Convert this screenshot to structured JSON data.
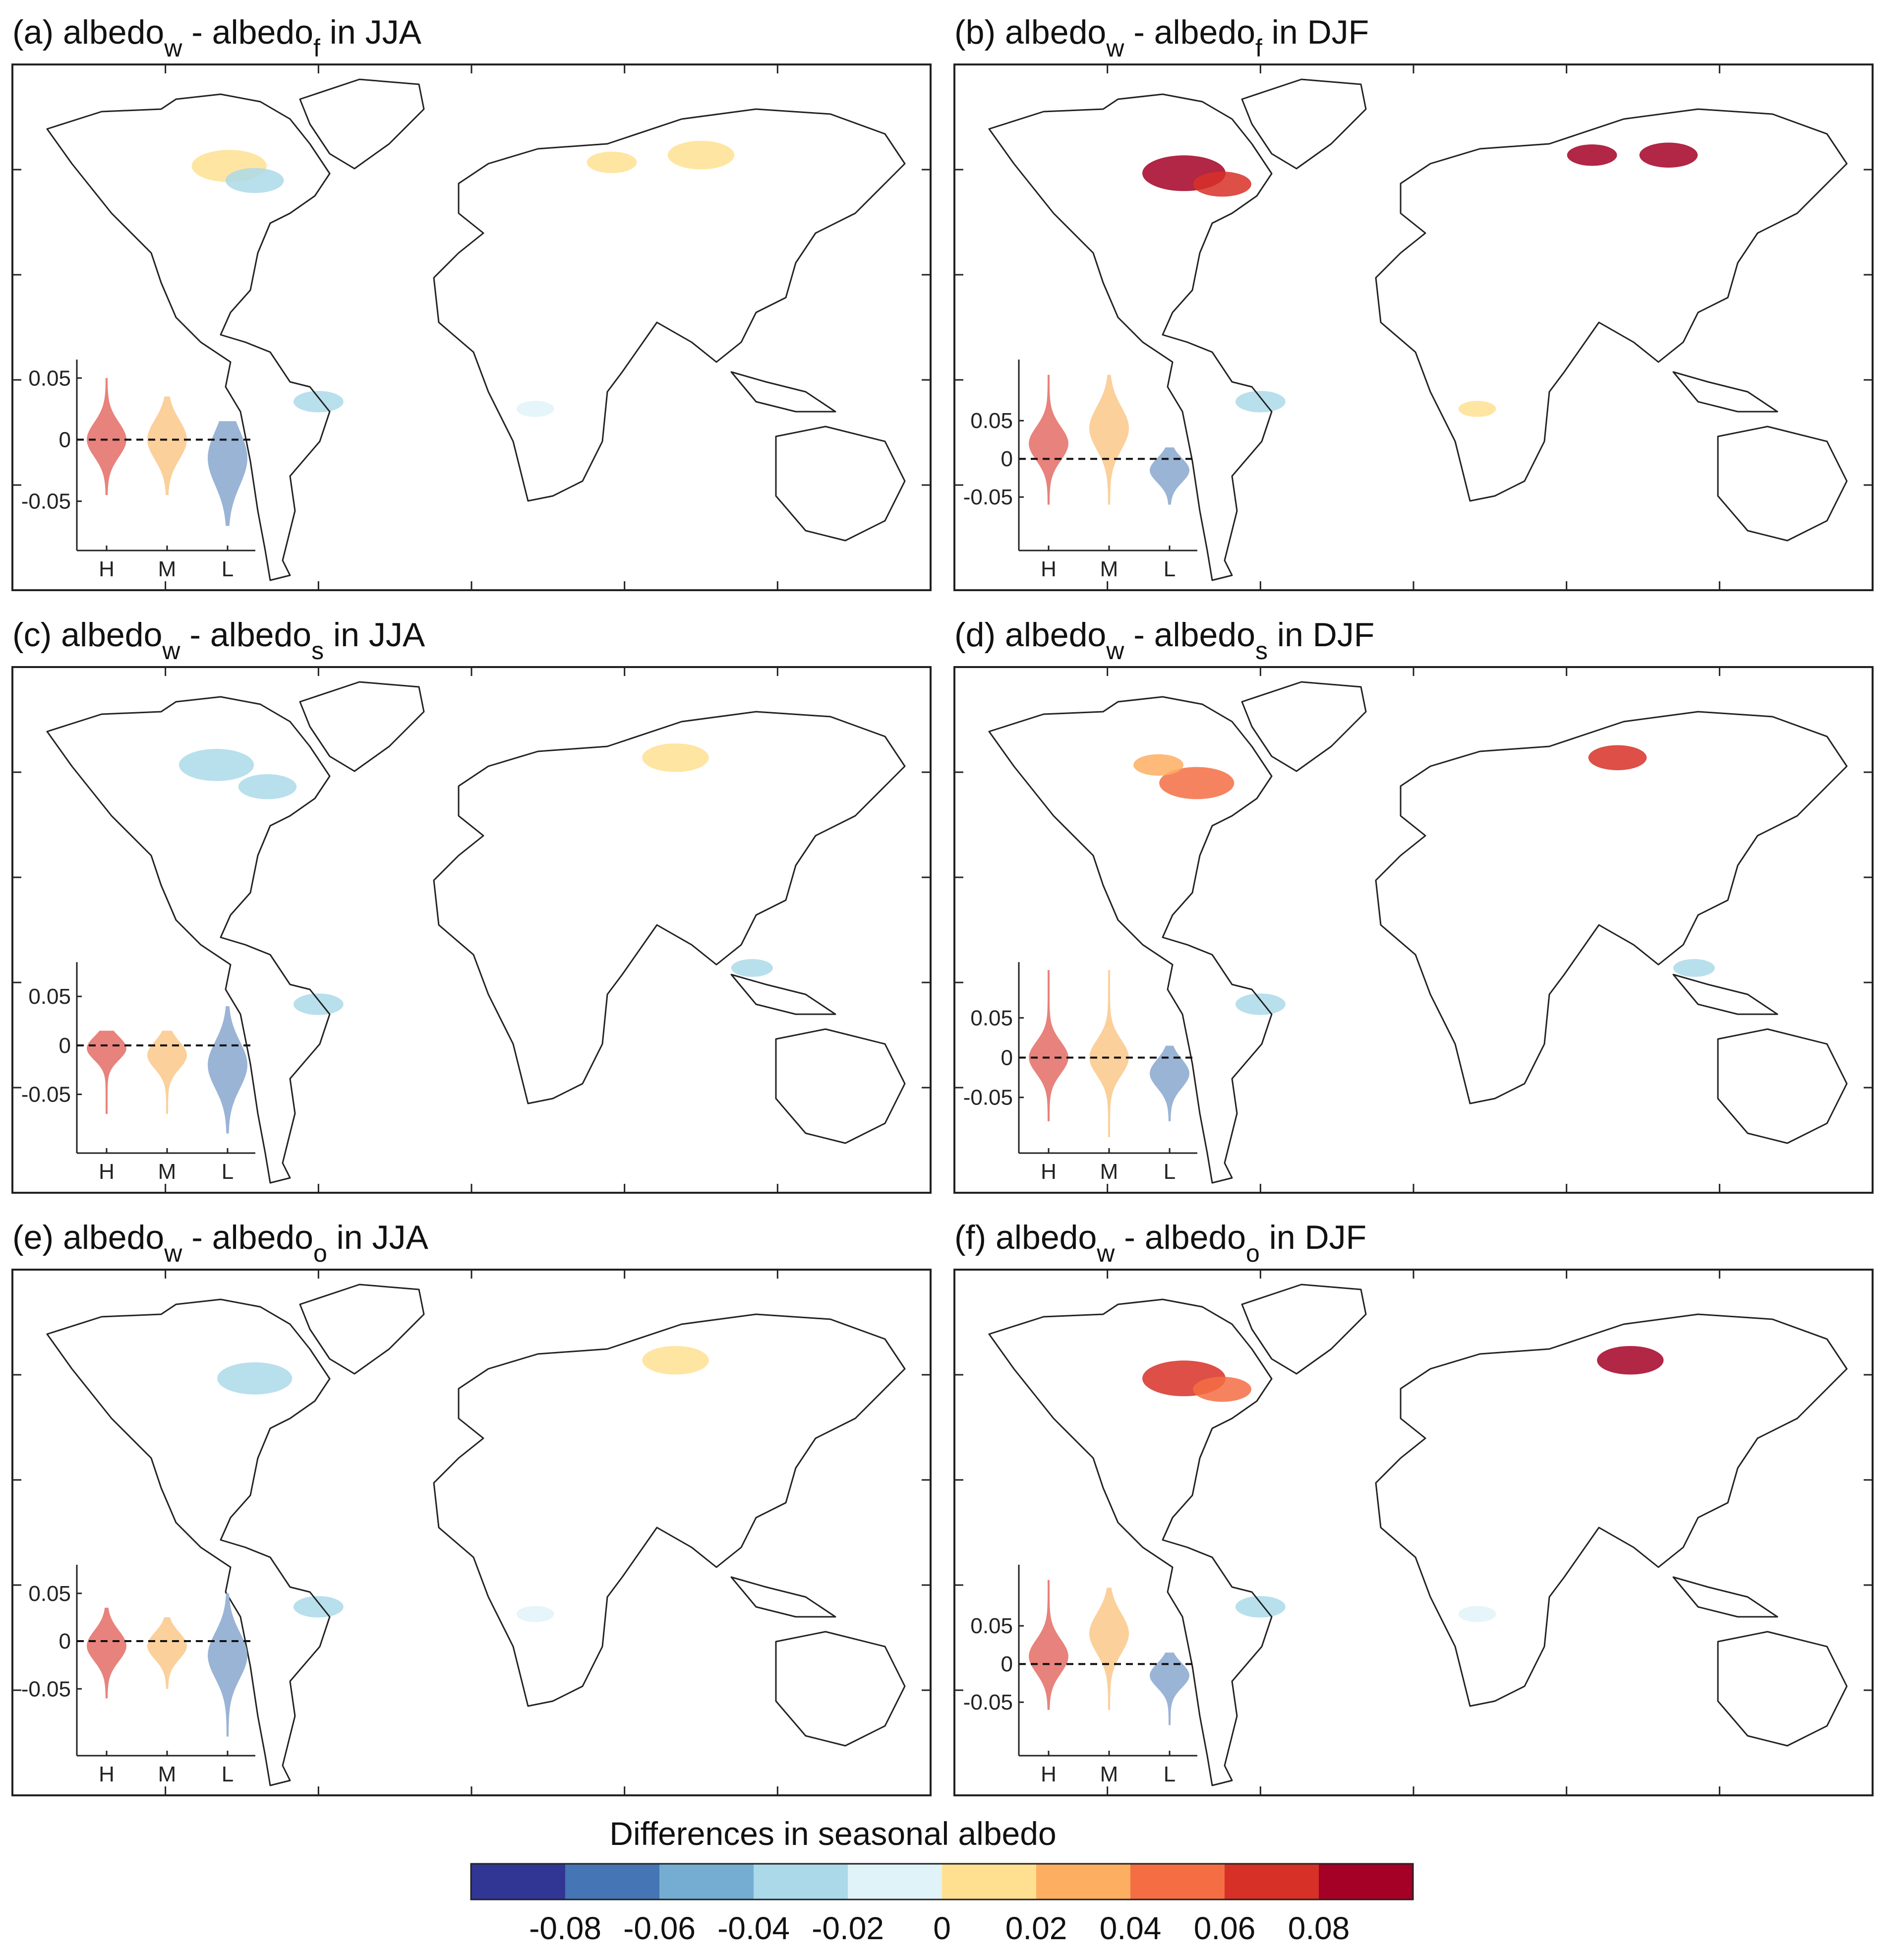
{
  "chart_data": [
    {
      "id": "a",
      "type": "violin+map",
      "title": {
        "prefix": "(a) albedo",
        "sub1": "w",
        "mid": " - albedo",
        "sub2": "f",
        "suffix": " in JJA"
      },
      "yticks": [
        0.05,
        0,
        -0.05
      ],
      "ylim": [
        -0.09,
        0.065
      ],
      "categories": [
        "H",
        "M",
        "L"
      ],
      "violins": [
        {
          "category": "H",
          "color": "#e8827c",
          "min": -0.045,
          "max": 0.05,
          "median": 0.0,
          "spread": 0.014
        },
        {
          "category": "M",
          "color": "#fbd09a",
          "min": -0.045,
          "max": 0.035,
          "median": 0.0,
          "spread": 0.016
        },
        {
          "category": "L",
          "color": "#9ab4d6",
          "min": -0.07,
          "max": 0.015,
          "median": -0.015,
          "spread": 0.022
        }
      ],
      "blobs": [
        {
          "lon": -95,
          "lat": 57,
          "r": 18,
          "color": "#fee090"
        },
        {
          "lon": -85,
          "lat": 53,
          "r": 14,
          "color": "#abd9e9"
        },
        {
          "lon": 55,
          "lat": 58,
          "r": 12,
          "color": "#fee090"
        },
        {
          "lon": 90,
          "lat": 60,
          "r": 16,
          "color": "#fee090"
        },
        {
          "lon": -60,
          "lat": -8,
          "r": 12,
          "color": "#abd9e9"
        },
        {
          "lon": 25,
          "lat": -10,
          "r": 9,
          "color": "#e0f3f8"
        }
      ]
    },
    {
      "id": "b",
      "type": "violin+map",
      "title": {
        "prefix": "(b) albedo",
        "sub1": "w",
        "mid": " - albedo",
        "sub2": "f",
        "suffix": " in DJF"
      },
      "yticks": [
        0.05,
        0,
        -0.05
      ],
      "ylim": [
        -0.12,
        0.13
      ],
      "categories": [
        "H",
        "M",
        "L"
      ],
      "violins": [
        {
          "category": "H",
          "color": "#e8827c",
          "min": -0.06,
          "max": 0.11,
          "median": 0.02,
          "spread": 0.022
        },
        {
          "category": "M",
          "color": "#fbd09a",
          "min": -0.06,
          "max": 0.11,
          "median": 0.04,
          "spread": 0.028
        },
        {
          "category": "L",
          "color": "#9ab4d6",
          "min": -0.06,
          "max": 0.015,
          "median": -0.015,
          "spread": 0.016
        }
      ],
      "blobs": [
        {
          "lon": -90,
          "lat": 55,
          "r": 20,
          "color": "#a50026"
        },
        {
          "lon": -75,
          "lat": 52,
          "r": 14,
          "color": "#d73027"
        },
        {
          "lon": 70,
          "lat": 60,
          "r": 12,
          "color": "#a50026"
        },
        {
          "lon": 100,
          "lat": 60,
          "r": 14,
          "color": "#a50026"
        },
        {
          "lon": -60,
          "lat": -8,
          "r": 12,
          "color": "#abd9e9"
        },
        {
          "lon": 25,
          "lat": -10,
          "r": 9,
          "color": "#fee090"
        }
      ]
    },
    {
      "id": "c",
      "type": "violin+map",
      "title": {
        "prefix": "(c) albedo",
        "sub1": "w",
        "mid": " - albedo",
        "sub2": "s",
        "suffix": " in JJA"
      },
      "yticks": [
        0.05,
        0,
        -0.05
      ],
      "ylim": [
        -0.11,
        0.085
      ],
      "categories": [
        "H",
        "M",
        "L"
      ],
      "violins": [
        {
          "category": "H",
          "color": "#e8827c",
          "min": -0.07,
          "max": 0.015,
          "median": -0.003,
          "spread": 0.012
        },
        {
          "category": "M",
          "color": "#fbd09a",
          "min": -0.07,
          "max": 0.015,
          "median": -0.01,
          "spread": 0.014
        },
        {
          "category": "L",
          "color": "#9ab4d6",
          "min": -0.09,
          "max": 0.04,
          "median": -0.02,
          "spread": 0.024
        }
      ],
      "blobs": [
        {
          "lon": -100,
          "lat": 58,
          "r": 18,
          "color": "#abd9e9"
        },
        {
          "lon": -80,
          "lat": 52,
          "r": 14,
          "color": "#abd9e9"
        },
        {
          "lon": 80,
          "lat": 60,
          "r": 16,
          "color": "#fee090"
        },
        {
          "lon": -60,
          "lat": -8,
          "r": 12,
          "color": "#abd9e9"
        },
        {
          "lon": 110,
          "lat": 2,
          "r": 10,
          "color": "#abd9e9"
        }
      ]
    },
    {
      "id": "d",
      "type": "violin+map",
      "title": {
        "prefix": "(d) albedo",
        "sub1": "w",
        "mid": " - albedo",
        "sub2": "s",
        "suffix": " in DJF"
      },
      "yticks": [
        0.05,
        0,
        -0.05
      ],
      "ylim": [
        -0.12,
        0.12
      ],
      "categories": [
        "H",
        "M",
        "L"
      ],
      "violins": [
        {
          "category": "H",
          "color": "#e8827c",
          "min": -0.08,
          "max": 0.11,
          "median": 0.0,
          "spread": 0.02
        },
        {
          "category": "M",
          "color": "#fbd09a",
          "min": -0.1,
          "max": 0.11,
          "median": 0.0,
          "spread": 0.022
        },
        {
          "category": "L",
          "color": "#9ab4d6",
          "min": -0.08,
          "max": 0.015,
          "median": -0.02,
          "spread": 0.018
        }
      ],
      "blobs": [
        {
          "lon": -85,
          "lat": 53,
          "r": 18,
          "color": "#f46d43"
        },
        {
          "lon": -100,
          "lat": 58,
          "r": 12,
          "color": "#fdae61"
        },
        {
          "lon": 80,
          "lat": 60,
          "r": 14,
          "color": "#d73027"
        },
        {
          "lon": -60,
          "lat": -8,
          "r": 12,
          "color": "#abd9e9"
        },
        {
          "lon": 110,
          "lat": 2,
          "r": 10,
          "color": "#abd9e9"
        }
      ]
    },
    {
      "id": "e",
      "type": "violin+map",
      "title": {
        "prefix": "(e) albedo",
        "sub1": "w",
        "mid": " - albedo",
        "sub2": "o",
        "suffix": " in JJA"
      },
      "yticks": [
        0.05,
        0,
        -0.05
      ],
      "ylim": [
        -0.12,
        0.08
      ],
      "categories": [
        "H",
        "M",
        "L"
      ],
      "violins": [
        {
          "category": "H",
          "color": "#e8827c",
          "min": -0.06,
          "max": 0.035,
          "median": -0.005,
          "spread": 0.016
        },
        {
          "category": "M",
          "color": "#fbd09a",
          "min": -0.05,
          "max": 0.025,
          "median": -0.005,
          "spread": 0.014
        },
        {
          "category": "L",
          "color": "#9ab4d6",
          "min": -0.1,
          "max": 0.05,
          "median": -0.015,
          "spread": 0.024
        }
      ],
      "blobs": [
        {
          "lon": -85,
          "lat": 55,
          "r": 18,
          "color": "#abd9e9"
        },
        {
          "lon": 80,
          "lat": 60,
          "r": 16,
          "color": "#fee090"
        },
        {
          "lon": -60,
          "lat": -8,
          "r": 12,
          "color": "#abd9e9"
        },
        {
          "lon": 25,
          "lat": -10,
          "r": 9,
          "color": "#e0f3f8"
        }
      ]
    },
    {
      "id": "f",
      "type": "violin+map",
      "title": {
        "prefix": "(f) albedo",
        "sub1": "w",
        "mid": " - albedo",
        "sub2": "o",
        "suffix": " in DJF"
      },
      "yticks": [
        0.05,
        0,
        -0.05
      ],
      "ylim": [
        -0.12,
        0.13
      ],
      "categories": [
        "H",
        "M",
        "L"
      ],
      "violins": [
        {
          "category": "H",
          "color": "#e8827c",
          "min": -0.06,
          "max": 0.11,
          "median": 0.01,
          "spread": 0.022
        },
        {
          "category": "M",
          "color": "#fbd09a",
          "min": -0.06,
          "max": 0.1,
          "median": 0.04,
          "spread": 0.026
        },
        {
          "category": "L",
          "color": "#9ab4d6",
          "min": -0.08,
          "max": 0.015,
          "median": -0.015,
          "spread": 0.016
        }
      ],
      "blobs": [
        {
          "lon": -90,
          "lat": 55,
          "r": 20,
          "color": "#d73027"
        },
        {
          "lon": -75,
          "lat": 52,
          "r": 14,
          "color": "#f46d43"
        },
        {
          "lon": 85,
          "lat": 60,
          "r": 16,
          "color": "#a50026"
        },
        {
          "lon": -60,
          "lat": -8,
          "r": 12,
          "color": "#abd9e9"
        },
        {
          "lon": 25,
          "lat": -10,
          "r": 9,
          "color": "#e0f3f8"
        }
      ]
    }
  ],
  "colorbar": {
    "title": "Differences in seasonal albedo",
    "ticks": [
      "-0.08",
      "-0.06",
      "-0.04",
      "-0.02",
      "0",
      "0.02",
      "0.04",
      "0.06",
      "0.08"
    ],
    "colors": [
      "#313695",
      "#4575b4",
      "#74add1",
      "#abd9e9",
      "#e0f3f8",
      "#fee090",
      "#fdae61",
      "#f46d43",
      "#d73027",
      "#a50026"
    ]
  }
}
